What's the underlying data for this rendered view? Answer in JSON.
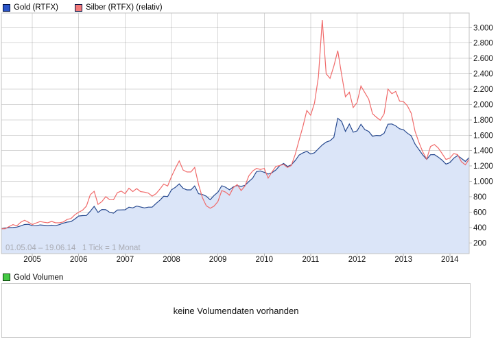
{
  "chart": {
    "legend": [
      {
        "label": "Gold (RTFX)",
        "color": "#2a55c8"
      },
      {
        "label": "Silber (RTFX) (relativ)",
        "color": "#f47a7a"
      }
    ],
    "footnote": "01.05.04 – 19.06.14   1 Tick = 1 Monat"
  },
  "chart_data": {
    "type": "line",
    "title": "",
    "x_start": "2004-05",
    "x_end": "2014-06",
    "tick_interval": "1 Tick = 1 Monat",
    "ylim": [
      60,
      3190
    ],
    "grid": true,
    "legend_position": "top-left",
    "y_ticks": [
      {
        "value": 200,
        "label": "200"
      },
      {
        "value": 400,
        "label": "400"
      },
      {
        "value": 600,
        "label": "600"
      },
      {
        "value": 800,
        "label": "800"
      },
      {
        "value": 1000,
        "label": "1.000"
      },
      {
        "value": 1200,
        "label": "1.200"
      },
      {
        "value": 1400,
        "label": "1.400"
      },
      {
        "value": 1600,
        "label": "1.600"
      },
      {
        "value": 1800,
        "label": "1.800"
      },
      {
        "value": 2000,
        "label": "2.000"
      },
      {
        "value": 2200,
        "label": "2.200"
      },
      {
        "value": 2400,
        "label": "2.400"
      },
      {
        "value": 2600,
        "label": "2.600"
      },
      {
        "value": 2800,
        "label": "2.800"
      },
      {
        "value": 3000,
        "label": "3.000"
      }
    ],
    "x_ticks": [
      {
        "label": "2005",
        "index": 8
      },
      {
        "label": "2006",
        "index": 20
      },
      {
        "label": "2007",
        "index": 32
      },
      {
        "label": "2008",
        "index": 44
      },
      {
        "label": "2009",
        "index": 56
      },
      {
        "label": "2010",
        "index": 68
      },
      {
        "label": "2011",
        "index": 80
      },
      {
        "label": "2012",
        "index": 92
      },
      {
        "label": "2013",
        "index": 104
      },
      {
        "label": "2014",
        "index": 116
      }
    ],
    "series": [
      {
        "name": "Gold (RTFX)",
        "color": "#27498f",
        "fill": "#dbe5f8",
        "values": [
          383,
          392,
          398,
          400,
          405,
          420,
          439,
          442,
          424,
          423,
          434,
          429,
          422,
          430,
          424,
          437,
          456,
          470,
          476,
          510,
          550,
          555,
          557,
          611,
          675,
          596,
          634,
          632,
          598,
          586,
          627,
          629,
          631,
          665,
          655,
          679,
          667,
          655,
          665,
          665,
          713,
          755,
          806,
          803,
          890,
          922,
          968,
          910,
          889,
          889,
          940,
          839,
          830,
          807,
          761,
          816,
          858,
          943,
          924,
          890,
          929,
          946,
          934,
          949,
          997,
          1043,
          1127,
          1135,
          1118,
          1095,
          1113,
          1149,
          1205,
          1233,
          1193,
          1216,
          1271,
          1342,
          1370,
          1391,
          1356,
          1373,
          1424,
          1473,
          1511,
          1529,
          1573,
          1820,
          1780,
          1650,
          1745,
          1640,
          1656,
          1743,
          1674,
          1650,
          1587,
          1597,
          1594,
          1626,
          1744,
          1747,
          1722,
          1685,
          1671,
          1628,
          1593,
          1485,
          1414,
          1343,
          1287,
          1347,
          1349,
          1316,
          1276,
          1225,
          1244,
          1301,
          1336,
          1299,
          1260,
          1310
        ]
      },
      {
        "name": "Silber (RTFX) (relativ)",
        "color": "#f06a6a",
        "fill": null,
        "values": [
          383,
          385,
          412,
          437,
          421,
          468,
          494,
          468,
          438,
          459,
          477,
          468,
          461,
          479,
          461,
          461,
          472,
          504,
          517,
          566,
          599,
          625,
          678,
          826,
          871,
          701,
          737,
          801,
          762,
          762,
          853,
          873,
          840,
          912,
          867,
          906,
          867,
          860,
          847,
          808,
          840,
          899,
          965,
          939,
          1063,
          1168,
          1266,
          1148,
          1122,
          1122,
          1181,
          958,
          788,
          683,
          650,
          677,
          736,
          880,
          860,
          821,
          919,
          958,
          880,
          939,
          1070,
          1135,
          1168,
          1155,
          1168,
          1043,
          1122,
          1194,
          1207,
          1220,
          1181,
          1207,
          1351,
          1536,
          1713,
          1922,
          1860,
          2020,
          2360,
          3100,
          2400,
          2340,
          2500,
          2700,
          2390,
          2100,
          2160,
          1960,
          2025,
          2240,
          2155,
          2070,
          1880,
          1835,
          1795,
          1880,
          2200,
          2140,
          2170,
          2045,
          2037,
          1985,
          1886,
          1651,
          1507,
          1382,
          1290,
          1454,
          1480,
          1434,
          1362,
          1284,
          1303,
          1362,
          1349,
          1255,
          1215,
          1290
        ]
      }
    ]
  },
  "volume_panel": {
    "legend_label": "Gold Volumen",
    "legend_color": "#44c944",
    "message": "keine Volumendaten vorhanden"
  }
}
